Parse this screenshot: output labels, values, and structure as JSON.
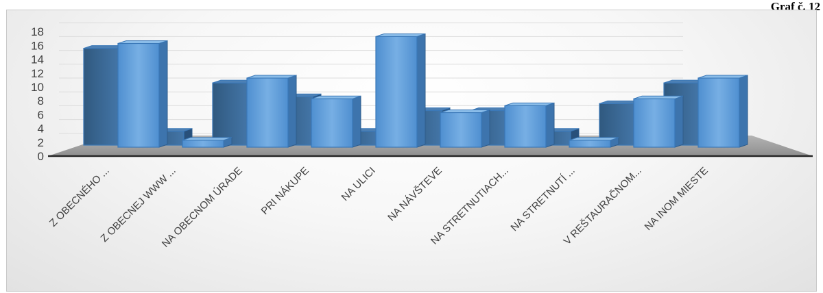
{
  "header": {
    "graf_label": "Graf č. 12"
  },
  "chart_data": {
    "type": "bar",
    "categories": [
      "Z OBECNÉHO ...",
      "Z OBECNEJ WWW ...",
      "NA OBECNOM ÚRADE",
      "PRI NÁKUPE",
      "NA ULICI",
      "NA NÁVŠTEVE",
      "NA STRETNUTIACH...",
      "NA STRETNUTÍ ...",
      "V REŠTAURAČNOM...",
      "NA INOM MIESTE"
    ],
    "series": [
      {
        "values": [
          15,
          1,
          10,
          7,
          16,
          5,
          6,
          1,
          7,
          10
        ]
      },
      {
        "values": [
          14,
          2,
          9,
          7,
          2,
          5,
          5,
          2,
          6,
          9
        ]
      }
    ],
    "y_ticks": [
      "0",
      "2",
      "4",
      "6",
      "8",
      "10",
      "12",
      "14",
      "16",
      "18"
    ],
    "ylim": [
      0,
      18
    ],
    "grid": true,
    "title": "",
    "xlabel": "",
    "ylabel": "",
    "colors": {
      "front_series": "#5b9bd5",
      "back_series": "#3d6fa3",
      "floor": "#a5a5a5",
      "axis": "#262626"
    }
  }
}
